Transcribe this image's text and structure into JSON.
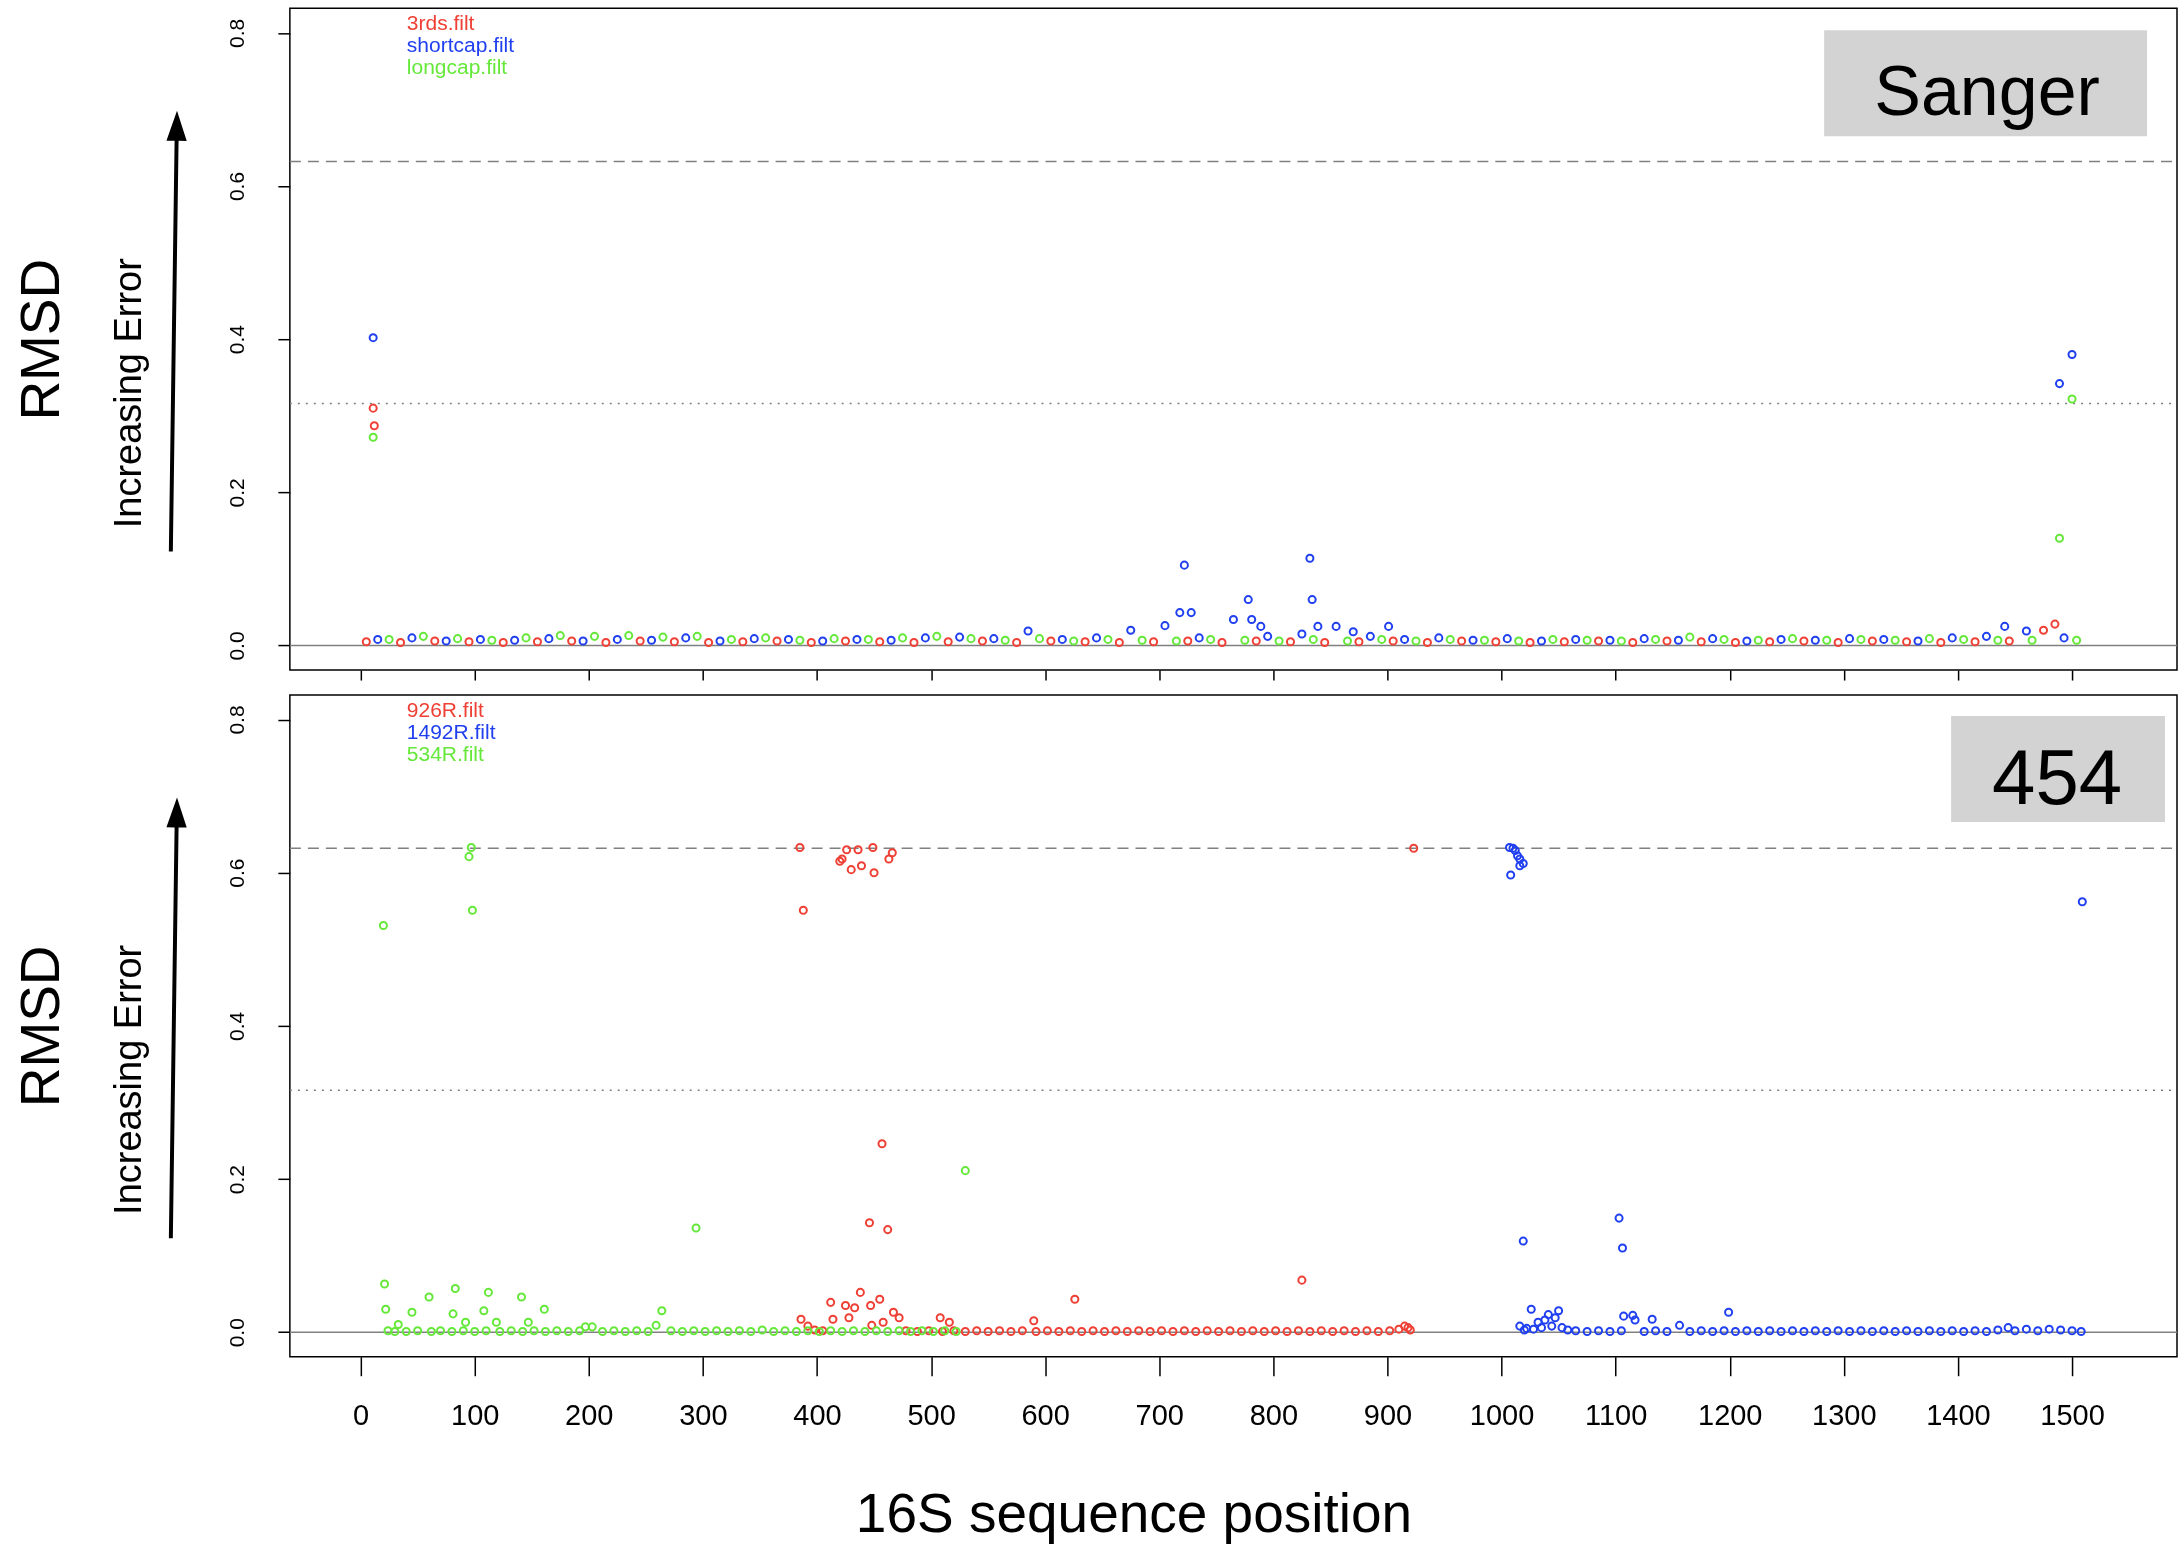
{
  "chart_data": [
    {
      "type": "scatter",
      "marker": "circle",
      "legend": "top left",
      "tick_labels": "y",
      "ylabel": "RMSD",
      "annotations": [
        "Sanger",
        "Increasing Error"
      ],
      "xlim": [
        -62,
        1592
      ],
      "xticks": [
        0,
        100,
        200,
        300,
        400,
        500,
        600,
        700,
        800,
        900,
        1000,
        1100,
        1200,
        1300,
        1400,
        1500
      ],
      "ylim": [
        -0.032,
        0.832
      ],
      "yticks": [
        {
          "value": 0,
          "label": "0.0"
        },
        0.2,
        0.4,
        0.6,
        0.8
      ],
      "ref_lines": [
        {
          "axis": "y",
          "value": 0,
          "color": "#808080",
          "line_style": "solid"
        },
        {
          "axis": "y",
          "value": 0.632,
          "color": "#808080",
          "line_style": "dashed"
        },
        {
          "axis": "y",
          "value": 0.316,
          "color": "#808080",
          "line_style": "dotted"
        }
      ],
      "series": [
        {
          "name": "3rds.filt",
          "color": "#ef4035",
          "x": [
            5,
            11,
            12,
            35,
            65,
            95,
            125,
            155,
            185,
            215,
            245,
            275,
            305,
            335,
            365,
            395,
            425,
            455,
            485,
            515,
            545,
            575,
            605,
            635,
            665,
            695,
            725,
            755,
            785,
            815,
            845,
            875,
            905,
            935,
            965,
            995,
            1025,
            1055,
            1085,
            1115,
            1145,
            1175,
            1205,
            1235,
            1265,
            1295,
            1325,
            1355,
            1385,
            1415,
            1445,
            1475,
            1485
          ],
          "values": [
            0.005,
            0.31,
            0.287,
            0.004,
            0.006,
            0.005,
            0.004,
            0.005,
            0.006,
            0.004,
            0.006,
            0.005,
            0.004,
            0.005,
            0.006,
            0.004,
            0.006,
            0.005,
            0.004,
            0.005,
            0.006,
            0.004,
            0.006,
            0.005,
            0.004,
            0.005,
            0.006,
            0.004,
            0.006,
            0.005,
            0.004,
            0.005,
            0.006,
            0.004,
            0.006,
            0.005,
            0.004,
            0.005,
            0.006,
            0.004,
            0.006,
            0.005,
            0.004,
            0.005,
            0.006,
            0.004,
            0.006,
            0.005,
            0.004,
            0.005,
            0.006,
            0.02,
            0.028
          ]
        },
        {
          "name": "shortcap.filt",
          "color": "#2040f0",
          "x": [
            11,
            15,
            45,
            75,
            105,
            135,
            165,
            195,
            225,
            255,
            285,
            315,
            345,
            375,
            405,
            435,
            465,
            495,
            525,
            555,
            585,
            615,
            645,
            675,
            705,
            718,
            722,
            728,
            735,
            765,
            778,
            781,
            789,
            795,
            825,
            832,
            834,
            839,
            855,
            870,
            885,
            901,
            915,
            945,
            975,
            1005,
            1035,
            1065,
            1095,
            1125,
            1155,
            1185,
            1215,
            1245,
            1275,
            1305,
            1335,
            1365,
            1395,
            1425,
            1441,
            1460,
            1489,
            1493,
            1500
          ],
          "values": [
            0.402,
            0.008,
            0.01,
            0.006,
            0.008,
            0.007,
            0.009,
            0.006,
            0.008,
            0.007,
            0.01,
            0.006,
            0.009,
            0.008,
            0.006,
            0.008,
            0.007,
            0.01,
            0.011,
            0.009,
            0.019,
            0.008,
            0.01,
            0.02,
            0.026,
            0.043,
            0.105,
            0.043,
            0.01,
            0.034,
            0.06,
            0.034,
            0.025,
            0.012,
            0.015,
            0.114,
            0.06,
            0.025,
            0.025,
            0.018,
            0.012,
            0.025,
            0.008,
            0.01,
            0.007,
            0.009,
            0.006,
            0.008,
            0.007,
            0.009,
            0.007,
            0.009,
            0.006,
            0.008,
            0.007,
            0.009,
            0.008,
            0.006,
            0.01,
            0.012,
            0.025,
            0.019,
            0.342,
            0.01,
            0.38
          ]
        },
        {
          "name": "longcap.filt",
          "color": "#66e83a",
          "x": [
            11,
            25,
            55,
            85,
            115,
            145,
            175,
            205,
            235,
            265,
            295,
            325,
            355,
            385,
            415,
            445,
            475,
            505,
            535,
            565,
            595,
            625,
            655,
            685,
            715,
            745,
            775,
            805,
            835,
            865,
            895,
            925,
            955,
            985,
            1015,
            1045,
            1075,
            1105,
            1135,
            1165,
            1195,
            1225,
            1255,
            1285,
            1315,
            1345,
            1375,
            1405,
            1435,
            1465,
            1489,
            1500,
            1504
          ],
          "values": [
            0.272,
            0.008,
            0.012,
            0.009,
            0.007,
            0.01,
            0.013,
            0.012,
            0.013,
            0.011,
            0.012,
            0.008,
            0.01,
            0.007,
            0.009,
            0.008,
            0.01,
            0.012,
            0.009,
            0.007,
            0.009,
            0.006,
            0.008,
            0.007,
            0.006,
            0.008,
            0.007,
            0.006,
            0.008,
            0.006,
            0.008,
            0.006,
            0.008,
            0.007,
            0.006,
            0.008,
            0.007,
            0.006,
            0.008,
            0.011,
            0.008,
            0.007,
            0.009,
            0.007,
            0.008,
            0.007,
            0.009,
            0.008,
            0.007,
            0.007,
            0.14,
            0.322,
            0.007
          ]
        }
      ]
    },
    {
      "type": "scatter",
      "marker": "circle",
      "legend": "top left",
      "ylabel": "RMSD",
      "xlabel": "16S sequence position",
      "annotations": [
        "454",
        "Increasing Error"
      ],
      "xlim": [
        -62,
        1592
      ],
      "xticks": [
        0,
        100,
        200,
        300,
        400,
        500,
        600,
        700,
        800,
        900,
        1000,
        1100,
        1200,
        1300,
        1400,
        1500
      ],
      "ylim": [
        -0.032,
        0.832
      ],
      "yticks": [
        {
          "value": 0,
          "label": "0.0"
        },
        0.2,
        0.4,
        0.6,
        0.8
      ],
      "ref_lines": [
        {
          "axis": "y",
          "value": 0,
          "color": "#808080",
          "line_style": "solid"
        },
        {
          "axis": "y",
          "value": 0.632,
          "color": "#808080",
          "line_style": "dashed"
        },
        {
          "axis": "y",
          "value": 0.316,
          "color": "#808080",
          "line_style": "dotted"
        }
      ],
      "series": [
        {
          "name": "926R.filt",
          "color": "#ef4035",
          "x": [
            385,
            386,
            388,
            392,
            398,
            405,
            412,
            414,
            420,
            422,
            425,
            426,
            428,
            430,
            433,
            436,
            438,
            439,
            446,
            447,
            448,
            449,
            450,
            455,
            457,
            458,
            462,
            463,
            466,
            467,
            472,
            478,
            488,
            498,
            508,
            510,
            516,
            520,
            530,
            540,
            550,
            560,
            570,
            580,
            590,
            592,
            602,
            612,
            622,
            626,
            632,
            642,
            652,
            662,
            672,
            682,
            692,
            702,
            712,
            722,
            732,
            742,
            752,
            762,
            772,
            782,
            792,
            802,
            812,
            822,
            825,
            832,
            842,
            852,
            862,
            872,
            882,
            892,
            902,
            910,
            915,
            918,
            920,
            923
          ],
          "values": [
            0.633,
            0.017,
            0.551,
            0.008,
            0.003,
            0.002,
            0.039,
            0.017,
            0.615,
            0.618,
            0.035,
            0.63,
            0.019,
            0.604,
            0.032,
            0.63,
            0.052,
            0.609,
            0.143,
            0.035,
            0.009,
            0.633,
            0.6,
            0.043,
            0.246,
            0.013,
            0.134,
            0.618,
            0.626,
            0.026,
            0.019,
            0.002,
            0.001,
            0.002,
            0.019,
            0.001,
            0.013,
            0.002,
            0.001,
            0.002,
            0.001,
            0.002,
            0.001,
            0.002,
            0.015,
            0.001,
            0.002,
            0.001,
            0.002,
            0.043,
            0.001,
            0.002,
            0.001,
            0.002,
            0.001,
            0.002,
            0.001,
            0.002,
            0.001,
            0.002,
            0.001,
            0.002,
            0.001,
            0.002,
            0.001,
            0.002,
            0.001,
            0.002,
            0.001,
            0.002,
            0.068,
            0.001,
            0.002,
            0.001,
            0.002,
            0.001,
            0.002,
            0.001,
            0.002,
            0.004,
            0.008,
            0.006,
            0.003,
            0.632
          ]
        },
        {
          "name": "1492R.filt",
          "color": "#2040f0",
          "x": [
            1007,
            1008,
            1010,
            1012,
            1014,
            1016,
            1016,
            1016,
            1019,
            1019,
            1020,
            1022,
            1026,
            1028,
            1032,
            1035,
            1038,
            1041,
            1044,
            1047,
            1050,
            1053,
            1058,
            1065,
            1075,
            1085,
            1095,
            1103,
            1105,
            1106,
            1107,
            1115,
            1117,
            1125,
            1132,
            1135,
            1145,
            1156,
            1165,
            1175,
            1185,
            1195,
            1199,
            1205,
            1215,
            1225,
            1235,
            1245,
            1255,
            1265,
            1275,
            1285,
            1295,
            1305,
            1315,
            1325,
            1335,
            1345,
            1355,
            1365,
            1375,
            1385,
            1395,
            1405,
            1415,
            1425,
            1435,
            1444,
            1450,
            1460,
            1470,
            1480,
            1490,
            1500,
            1508,
            1509
          ],
          "values": [
            0.633,
            0.597,
            0.632,
            0.629,
            0.622,
            0.618,
            0.609,
            0.008,
            0.612,
            0.119,
            0.003,
            0.005,
            0.03,
            0.004,
            0.013,
            0.006,
            0.016,
            0.023,
            0.008,
            0.019,
            0.028,
            0.006,
            0.003,
            0.002,
            0.001,
            0.002,
            0.001,
            0.149,
            0.002,
            0.11,
            0.021,
            0.022,
            0.016,
            0.001,
            0.017,
            0.002,
            0.001,
            0.009,
            0.001,
            0.002,
            0.001,
            0.002,
            0.026,
            0.001,
            0.002,
            0.001,
            0.002,
            0.001,
            0.002,
            0.001,
            0.002,
            0.001,
            0.002,
            0.001,
            0.002,
            0.001,
            0.002,
            0.001,
            0.002,
            0.001,
            0.002,
            0.001,
            0.002,
            0.001,
            0.002,
            0.001,
            0.003,
            0.006,
            0.002,
            0.004,
            0.002,
            0.004,
            0.003,
            0.002,
            0.001,
            0.562
          ]
        },
        {
          "name": "534R.filt",
          "color": "#66e83a",
          "x": [
            20,
            21,
            22,
            24,
            30,
            33,
            40,
            45,
            50,
            60,
            62,
            70,
            80,
            81,
            83,
            90,
            92,
            95,
            97,
            98,
            100,
            108,
            110,
            112,
            119,
            122,
            132,
            141,
            142,
            147,
            152,
            161,
            162,
            172,
            182,
            192,
            197,
            203,
            212,
            222,
            232,
            242,
            252,
            259,
            264,
            272,
            282,
            292,
            294,
            302,
            312,
            322,
            332,
            342,
            352,
            362,
            372,
            382,
            392,
            402,
            412,
            422,
            432,
            442,
            452,
            462,
            472,
            482,
            492,
            502,
            512,
            522,
            530
          ],
          "values": [
            0.531,
            0.063,
            0.03,
            0.002,
            0.001,
            0.01,
            0.001,
            0.026,
            0.002,
            0.046,
            0.001,
            0.002,
            0.001,
            0.024,
            0.057,
            0.002,
            0.013,
            0.621,
            0.633,
            0.551,
            0.001,
            0.028,
            0.002,
            0.052,
            0.013,
            0.001,
            0.002,
            0.046,
            0.001,
            0.013,
            0.002,
            0.03,
            0.001,
            0.002,
            0.001,
            0.002,
            0.007,
            0.007,
            0.001,
            0.002,
            0.001,
            0.002,
            0.001,
            0.009,
            0.028,
            0.002,
            0.001,
            0.002,
            0.136,
            0.001,
            0.002,
            0.001,
            0.002,
            0.001,
            0.003,
            0.001,
            0.002,
            0.001,
            0.002,
            0.001,
            0.002,
            0.001,
            0.002,
            0.001,
            0.002,
            0.001,
            0.002,
            0.001,
            0.002,
            0.001,
            0.002,
            0.001,
            0.211
          ]
        }
      ]
    }
  ]
}
